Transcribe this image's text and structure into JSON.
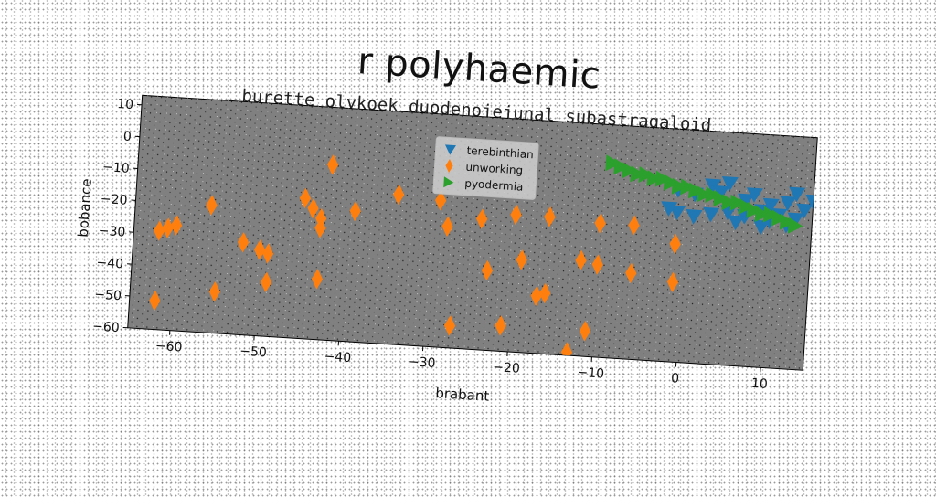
{
  "chart_data": {
    "type": "scatter",
    "title": "r polyhaemic",
    "subtitle": "burette olykoek duodenojejunal subastragaloid",
    "xlabel": "brabant",
    "ylabel": "bobance",
    "xlim": [
      -65,
      15
    ],
    "ylim": [
      -60,
      13
    ],
    "xticks": [
      -60,
      -50,
      -40,
      -30,
      -20,
      -10,
      0,
      10
    ],
    "yticks": [
      10,
      0,
      -10,
      -20,
      -30,
      -40,
      -50,
      -60
    ],
    "legend_position": "top-center",
    "background": "#808080",
    "series": [
      {
        "name": "terebinthian",
        "marker": "triangle-down",
        "color": "#1f77b4",
        "points": [
          [
            -1,
            -6
          ],
          [
            1,
            -7
          ],
          [
            3,
            -4
          ],
          [
            4,
            -6
          ],
          [
            5,
            -3
          ],
          [
            7,
            -8
          ],
          [
            8,
            -6
          ],
          [
            9,
            -11
          ],
          [
            10,
            -9
          ],
          [
            11,
            -12
          ],
          [
            12,
            -8
          ],
          [
            13,
            -13
          ],
          [
            14,
            -10
          ],
          [
            15,
            -7
          ],
          [
            12,
            -15
          ],
          [
            10,
            -14
          ],
          [
            7,
            -13
          ],
          [
            5,
            -12
          ],
          [
            3,
            -13
          ],
          [
            1,
            -14
          ],
          [
            -1,
            -13
          ],
          [
            -2,
            -12
          ],
          [
            13,
            -5
          ],
          [
            9,
            -16
          ],
          [
            6,
            -15
          ]
        ]
      },
      {
        "name": "unworking",
        "marker": "thin-diamond",
        "color": "#ff7f0e",
        "points": [
          [
            -62,
            -29
          ],
          [
            -61,
            -28
          ],
          [
            -60,
            -27
          ],
          [
            -56,
            -20
          ],
          [
            -52,
            -31
          ],
          [
            -50,
            -33
          ],
          [
            -49,
            -34
          ],
          [
            -49,
            -43
          ],
          [
            -55,
            -47
          ],
          [
            -62,
            -51
          ],
          [
            -45,
            -16
          ],
          [
            -44,
            -19
          ],
          [
            -43,
            -22
          ],
          [
            -43,
            -25
          ],
          [
            -42,
            -5
          ],
          [
            -39,
            -19
          ],
          [
            -43,
            -41
          ],
          [
            -34,
            -13
          ],
          [
            -29,
            -14
          ],
          [
            -28,
            -22
          ],
          [
            -24,
            -19
          ],
          [
            -23,
            -35
          ],
          [
            -20,
            -17
          ],
          [
            -16,
            -17
          ],
          [
            -19,
            -31
          ],
          [
            -10,
            -18
          ],
          [
            -6,
            -18
          ],
          [
            -1,
            -23
          ],
          [
            -12,
            -30
          ],
          [
            -10,
            -31
          ],
          [
            -16,
            -41
          ],
          [
            -17,
            -42
          ],
          [
            -6,
            -33
          ],
          [
            -1,
            -35
          ],
          [
            -27,
            -53
          ],
          [
            -21,
            -52
          ],
          [
            -11,
            -52
          ],
          [
            -20,
            -64
          ],
          [
            -17,
            -64
          ],
          [
            -13,
            -59
          ],
          [
            -10,
            -65
          ]
        ]
      },
      {
        "name": "pyodermia",
        "marker": "triangle-right",
        "color": "#2ca02c",
        "points": [
          [
            -9,
            1
          ],
          [
            -8,
            0
          ],
          [
            -7,
            -1
          ],
          [
            -6,
            -2
          ],
          [
            -5,
            -2
          ],
          [
            -4,
            -3
          ],
          [
            -3,
            -3
          ],
          [
            -2,
            -4
          ],
          [
            -1,
            -5
          ],
          [
            0,
            -5
          ],
          [
            1,
            -6
          ],
          [
            2,
            -7
          ],
          [
            3,
            -7
          ],
          [
            4,
            -8
          ],
          [
            5,
            -9
          ],
          [
            6,
            -9
          ],
          [
            7,
            -10
          ],
          [
            8,
            -11
          ],
          [
            9,
            -12
          ],
          [
            10,
            -12
          ],
          [
            11,
            -13
          ],
          [
            12,
            -14
          ],
          [
            13,
            -15
          ]
        ]
      }
    ]
  }
}
